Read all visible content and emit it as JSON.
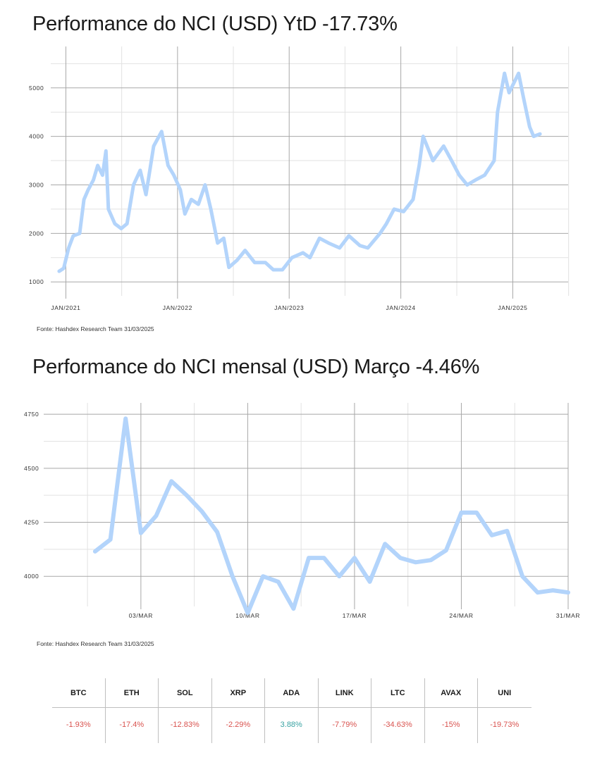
{
  "colors": {
    "line": "#b3d4fb",
    "grid_major": "#a8a8a8",
    "grid_minor": "#e2e2e2",
    "negative": "#d9534f",
    "positive": "#3aa3a3"
  },
  "ytd": {
    "title": "Performance do NCI (USD) YtD -17.73%",
    "source": "Fonte: Hashdex Research Team 31/03/2025"
  },
  "monthly": {
    "title": "Performance do NCI mensal (USD) Março -4.46%",
    "source": "Fonte: Hashdex Research Team 31/03/2025"
  },
  "assets": [
    {
      "symbol": "BTC",
      "change": "-1.93%",
      "positive": false
    },
    {
      "symbol": "ETH",
      "change": "-17.4%",
      "positive": false
    },
    {
      "symbol": "SOL",
      "change": "-12.83%",
      "positive": false
    },
    {
      "symbol": "XRP",
      "change": "-2.29%",
      "positive": false
    },
    {
      "symbol": "ADA",
      "change": "3.88%",
      "positive": true
    },
    {
      "symbol": "LINK",
      "change": "-7.79%",
      "positive": false
    },
    {
      "symbol": "LTC",
      "change": "-34.63%",
      "positive": false
    },
    {
      "symbol": "AVAX",
      "change": "-15%",
      "positive": false
    },
    {
      "symbol": "UNI",
      "change": "-19.73%",
      "positive": false
    }
  ],
  "chart_data": [
    {
      "type": "line",
      "title": "Performance do NCI (USD) YtD -17.73%",
      "xlabel": "",
      "ylabel": "",
      "x_ticks": [
        "JAN/2021",
        "JAN/2022",
        "JAN/2023",
        "JAN/2024",
        "JAN/2025"
      ],
      "y_ticks": [
        1000,
        2000,
        3000,
        4000,
        5000
      ],
      "xlim": [
        "2020-12-01",
        "2025-07-01"
      ],
      "ylim": [
        800,
        5650
      ],
      "grid": true,
      "series": [
        {
          "values": [
            [
              "2020-12-10",
              1220
            ],
            [
              "2020-12-25",
              1280
            ],
            [
              "2021-01-10",
              1700
            ],
            [
              "2021-01-25",
              1950
            ],
            [
              "2021-02-15",
              2000
            ],
            [
              "2021-03-01",
              2700
            ],
            [
              "2021-03-15",
              2900
            ],
            [
              "2021-04-01",
              3100
            ],
            [
              "2021-04-15",
              3400
            ],
            [
              "2021-05-01",
              3200
            ],
            [
              "2021-05-12",
              3700
            ],
            [
              "2021-05-20",
              2500
            ],
            [
              "2021-06-10",
              2200
            ],
            [
              "2021-07-01",
              2100
            ],
            [
              "2021-07-20",
              2200
            ],
            [
              "2021-08-10",
              3000
            ],
            [
              "2021-09-01",
              3300
            ],
            [
              "2021-09-20",
              2800
            ],
            [
              "2021-10-15",
              3800
            ],
            [
              "2021-11-10",
              4100
            ],
            [
              "2021-12-01",
              3400
            ],
            [
              "2021-12-20",
              3200
            ],
            [
              "2022-01-10",
              2900
            ],
            [
              "2022-01-25",
              2400
            ],
            [
              "2022-02-15",
              2700
            ],
            [
              "2022-03-10",
              2600
            ],
            [
              "2022-04-01",
              3000
            ],
            [
              "2022-04-20",
              2500
            ],
            [
              "2022-05-12",
              1800
            ],
            [
              "2022-06-01",
              1900
            ],
            [
              "2022-06-18",
              1300
            ],
            [
              "2022-07-15",
              1450
            ],
            [
              "2022-08-10",
              1650
            ],
            [
              "2022-09-10",
              1400
            ],
            [
              "2022-10-15",
              1400
            ],
            [
              "2022-11-10",
              1250
            ],
            [
              "2022-12-10",
              1250
            ],
            [
              "2023-01-10",
              1500
            ],
            [
              "2023-02-15",
              1600
            ],
            [
              "2023-03-10",
              1500
            ],
            [
              "2023-04-10",
              1900
            ],
            [
              "2023-05-10",
              1800
            ],
            [
              "2023-06-15",
              1700
            ],
            [
              "2023-07-15",
              1950
            ],
            [
              "2023-08-20",
              1750
            ],
            [
              "2023-09-15",
              1700
            ],
            [
              "2023-10-25",
              2000
            ],
            [
              "2023-11-15",
              2200
            ],
            [
              "2023-12-10",
              2500
            ],
            [
              "2024-01-10",
              2450
            ],
            [
              "2024-02-10",
              2700
            ],
            [
              "2024-03-01",
              3400
            ],
            [
              "2024-03-14",
              4000
            ],
            [
              "2024-04-15",
              3500
            ],
            [
              "2024-05-20",
              3800
            ],
            [
              "2024-06-15",
              3500
            ],
            [
              "2024-07-10",
              3200
            ],
            [
              "2024-08-05",
              3000
            ],
            [
              "2024-09-01",
              3100
            ],
            [
              "2024-10-01",
              3200
            ],
            [
              "2024-11-01",
              3500
            ],
            [
              "2024-11-12",
              4500
            ],
            [
              "2024-12-05",
              5300
            ],
            [
              "2024-12-20",
              4900
            ],
            [
              "2025-01-20",
              5300
            ],
            [
              "2025-02-05",
              4800
            ],
            [
              "2025-02-25",
              4200
            ],
            [
              "2025-03-10",
              4000
            ],
            [
              "2025-03-31",
              4050
            ]
          ]
        }
      ]
    },
    {
      "type": "line",
      "title": "Performance do NCI mensal (USD) Março -4.46%",
      "xlabel": "",
      "ylabel": "",
      "x_ticks": [
        "03/MAR",
        "10/MAR",
        "17/MAR",
        "24/MAR",
        "31/MAR"
      ],
      "y_ticks": [
        4000,
        4250,
        4500,
        4750
      ],
      "xlim": [
        "2025-02-25",
        "2025-03-31"
      ],
      "ylim": [
        3880,
        4770
      ],
      "grid": true,
      "series": [
        {
          "values": [
            [
              "2025-02-28",
              4115
            ],
            [
              "2025-03-01",
              4170
            ],
            [
              "2025-03-02",
              4730
            ],
            [
              "2025-03-03",
              4200
            ],
            [
              "2025-03-04",
              4280
            ],
            [
              "2025-03-05",
              4440
            ],
            [
              "2025-03-06",
              4375
            ],
            [
              "2025-03-07",
              4300
            ],
            [
              "2025-03-08",
              4205
            ],
            [
              "2025-03-09",
              4000
            ],
            [
              "2025-03-10",
              3830
            ],
            [
              "2025-03-11",
              4000
            ],
            [
              "2025-03-12",
              3975
            ],
            [
              "2025-03-13",
              3850
            ],
            [
              "2025-03-14",
              4085
            ],
            [
              "2025-03-15",
              4085
            ],
            [
              "2025-03-16",
              4000
            ],
            [
              "2025-03-17",
              4085
            ],
            [
              "2025-03-18",
              3975
            ],
            [
              "2025-03-19",
              4150
            ],
            [
              "2025-03-20",
              4085
            ],
            [
              "2025-03-21",
              4065
            ],
            [
              "2025-03-22",
              4075
            ],
            [
              "2025-03-23",
              4120
            ],
            [
              "2025-03-24",
              4295
            ],
            [
              "2025-03-25",
              4295
            ],
            [
              "2025-03-26",
              4190
            ],
            [
              "2025-03-27",
              4210
            ],
            [
              "2025-03-28",
              4000
            ],
            [
              "2025-03-29",
              3925
            ],
            [
              "2025-03-30",
              3935
            ],
            [
              "2025-03-31",
              3925
            ]
          ]
        }
      ]
    }
  ]
}
